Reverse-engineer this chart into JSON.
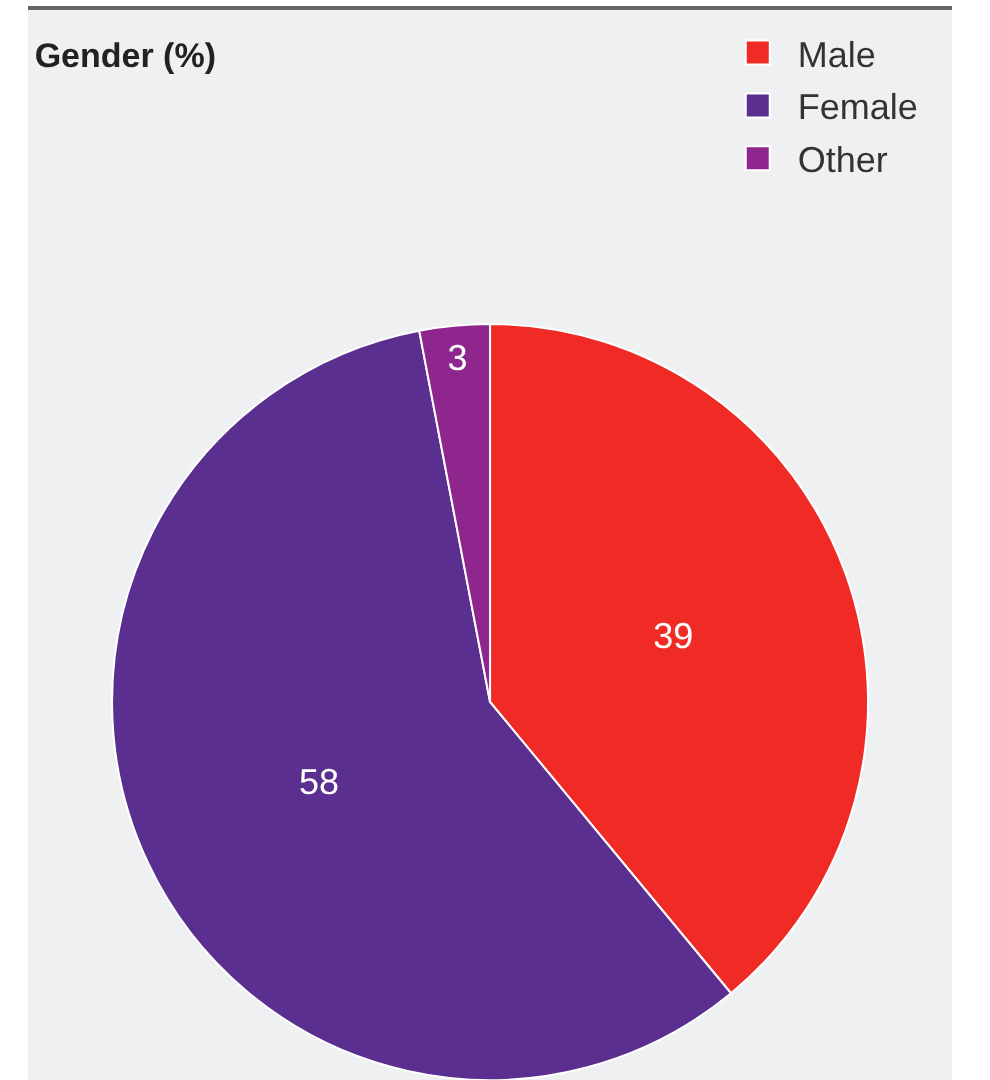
{
  "chart_data": {
    "type": "pie",
    "title": "Gender (%)",
    "categories": [
      "Male",
      "Female",
      "Other"
    ],
    "values": [
      39,
      58,
      3
    ],
    "colors": [
      "#f02a24",
      "#5b2f8f",
      "#8e268e"
    ],
    "data_labels": true,
    "legend": "top right"
  }
}
